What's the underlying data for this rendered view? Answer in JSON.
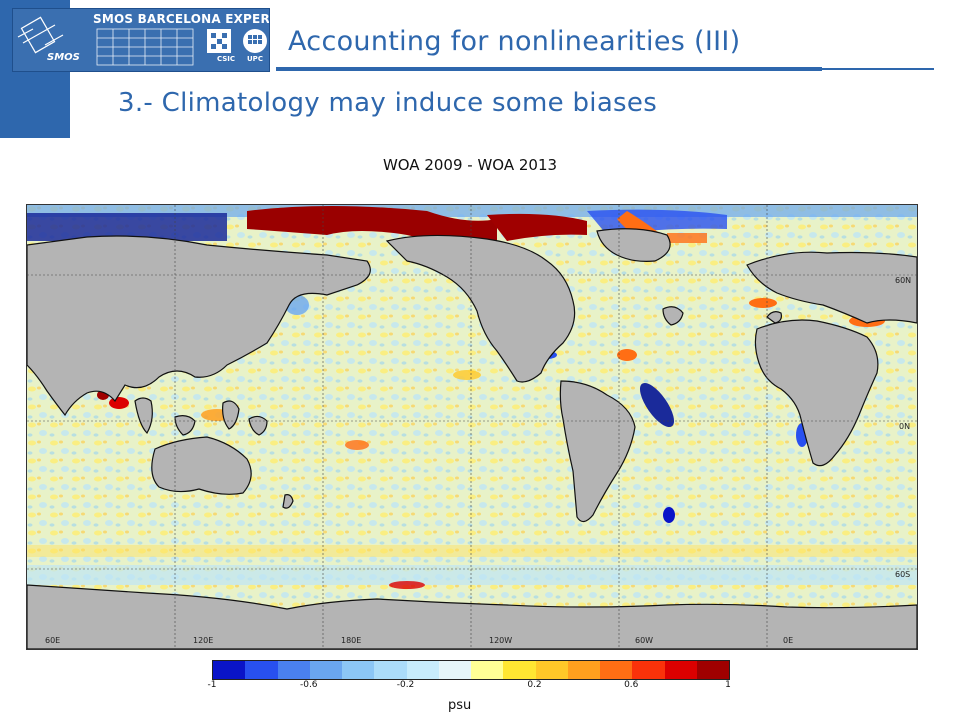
{
  "header": {
    "logo_title": "SMOS BARCELONA EXPERT CENTRE",
    "logo_sub": "SMOS",
    "logo_csic": "CSIC",
    "logo_upc": "UPC",
    "accent_color": "#2e67ad"
  },
  "slide": {
    "title": "Accounting for nonlinearities (III)",
    "subtitle": "3.- Climatology may induce some biases"
  },
  "figure": {
    "map_title": "WOA 2009 - WOA 2013",
    "lon_labels": [
      "60E",
      "120E",
      "180E",
      "120W",
      "60W",
      "0E"
    ],
    "lat_labels": [
      "60N",
      "0N",
      "60S"
    ],
    "land_color": "#b4b4b4",
    "colorbar": {
      "colors": [
        "#0a14c8",
        "#2850f0",
        "#4a80f0",
        "#6aa6f0",
        "#8cc6f6",
        "#acdcfa",
        "#c8ecfc",
        "#e6f6fa",
        "#ffff96",
        "#ffe632",
        "#ffc828",
        "#ffa01e",
        "#ff6e14",
        "#fa320a",
        "#dc0000",
        "#a00000"
      ],
      "tick_labels": [
        "-1",
        "-0.6",
        "-0.2",
        "0.2",
        "0.6",
        "1"
      ],
      "units": "psu"
    }
  }
}
